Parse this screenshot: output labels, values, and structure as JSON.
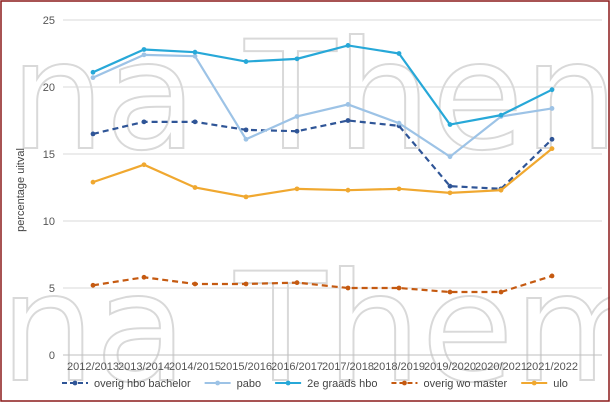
{
  "chart_data": {
    "type": "line",
    "title": "",
    "ylabel": "percentage uitval",
    "xlabel": "",
    "ylim": [
      0,
      25
    ],
    "yticks": [
      0,
      5,
      10,
      15,
      20,
      25
    ],
    "grid": true,
    "legend_position": "bottom",
    "categories": [
      "2012/2013",
      "2013/2014",
      "2014/2015",
      "2015/2016",
      "2016/2017",
      "2017/2018",
      "2018/2019",
      "2019/2020",
      "2020/2021",
      "2021/2022"
    ],
    "series": [
      {
        "name": "overig hbo bachelor",
        "color": "#2f5597",
        "dash": "dashed",
        "values": [
          16.5,
          17.4,
          17.4,
          16.8,
          16.7,
          17.5,
          17.1,
          12.6,
          12.4,
          16.1
        ]
      },
      {
        "name": "pabo",
        "color": "#9dc3e6",
        "dash": "solid",
        "values": [
          20.7,
          22.4,
          22.3,
          16.1,
          17.8,
          18.7,
          17.3,
          14.8,
          17.8,
          18.4
        ]
      },
      {
        "name": "2e graads hbo",
        "color": "#27a8d8",
        "dash": "solid",
        "values": [
          21.1,
          22.8,
          22.6,
          21.9,
          22.1,
          23.1,
          22.5,
          17.2,
          17.9,
          19.8
        ]
      },
      {
        "name": "overig wo master",
        "color": "#c55a11",
        "dash": "dashed",
        "values": [
          5.2,
          5.8,
          5.3,
          5.3,
          5.4,
          5.0,
          5.0,
          4.7,
          4.7,
          5.9
        ]
      },
      {
        "name": "ulo",
        "color": "#f0a830",
        "dash": "solid",
        "values": [
          12.9,
          14.2,
          12.5,
          11.8,
          12.4,
          12.3,
          12.4,
          12.1,
          12.3,
          15.4
        ]
      }
    ]
  },
  "watermark": {
    "line1": "na Then",
    "line2": "na Them"
  },
  "colors": {
    "frame": "#8b1a1a",
    "grid": "#d9d9d9",
    "axis": "#bfbfbf"
  }
}
